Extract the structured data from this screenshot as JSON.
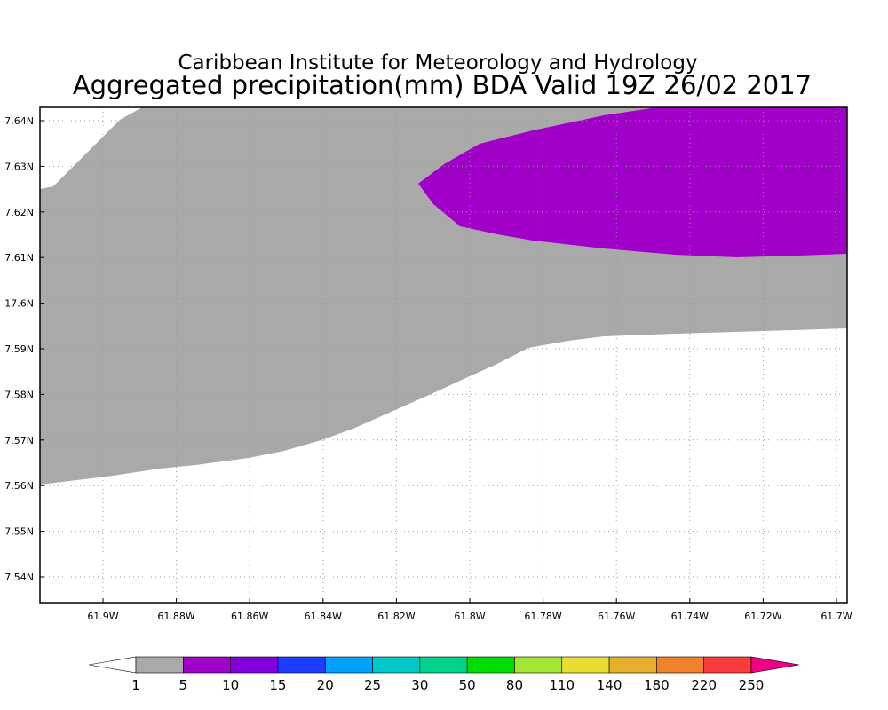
{
  "header": {
    "institution": "Caribbean Institute for Meteorology and Hydrology",
    "title": "Aggregated precipitation(mm) BDA Valid 19Z 26/02 2017"
  },
  "map": {
    "y_labels": [
      "7.64N",
      "7.63N",
      "7.62N",
      "7.61N",
      "17.6N",
      "7.59N",
      "7.58N",
      "7.57N",
      "7.56N",
      "7.55N",
      "7.54N"
    ],
    "x_labels": [
      "61.9W",
      "61.88W",
      "61.86W",
      "61.84W",
      "61.82W",
      "61.8W",
      "61.78W",
      "61.76W",
      "61.74W",
      "61.72W",
      "61.7W"
    ]
  },
  "legend": {
    "levels": [
      1,
      5,
      10,
      15,
      20,
      25,
      30,
      50,
      80,
      110,
      140,
      180,
      220,
      250
    ],
    "colors": [
      "#ffffff",
      "#a9a9a9",
      "#a000c8",
      "#8200dc",
      "#1e3cff",
      "#00a0ff",
      "#00c8c8",
      "#00d28c",
      "#00dc00",
      "#a0e632",
      "#e6dc32",
      "#e6af2d",
      "#f08228",
      "#fa3c3c",
      "#f00082"
    ]
  }
}
